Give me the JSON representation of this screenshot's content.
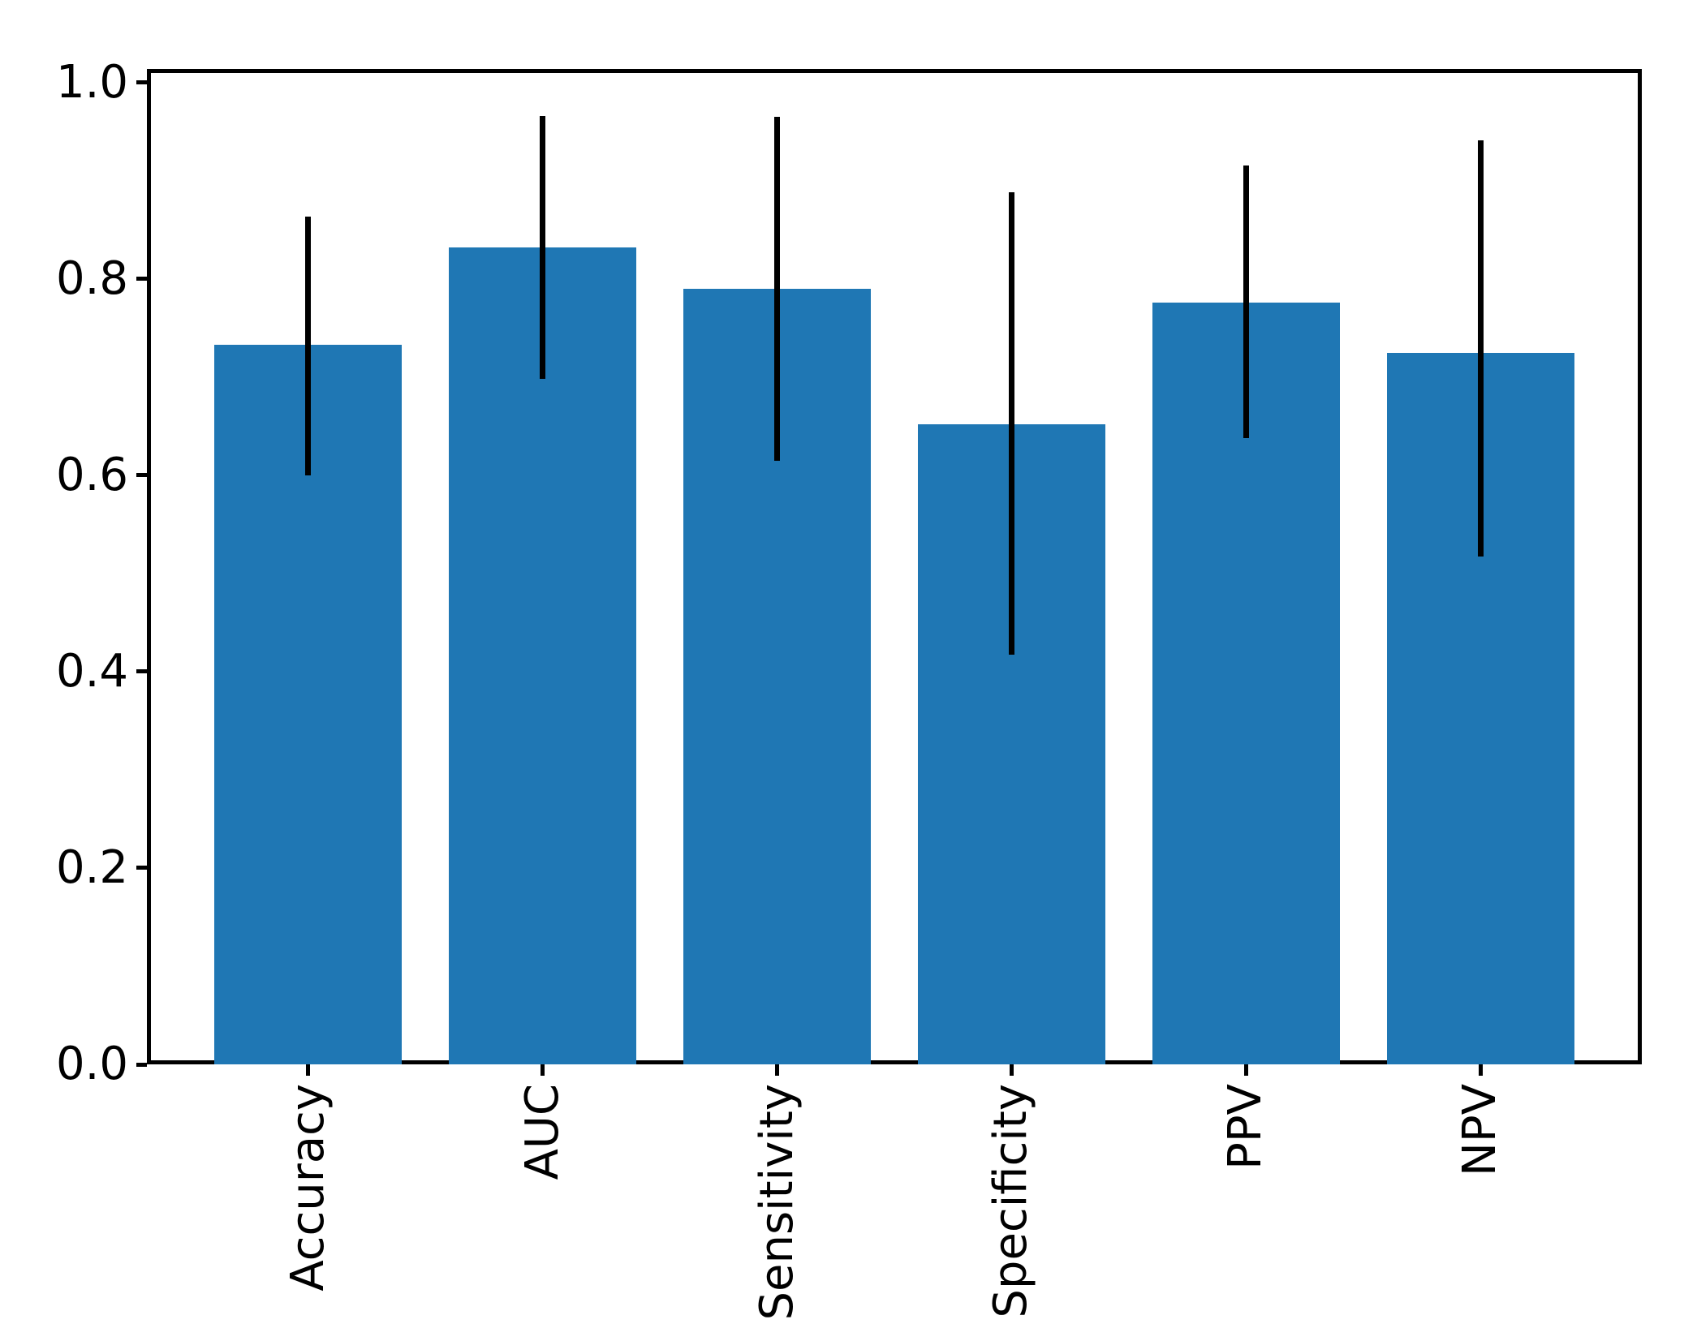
{
  "chart_data": {
    "type": "bar",
    "title": "",
    "xlabel": "",
    "ylabel": "",
    "categories": [
      "Accuracy",
      "AUC",
      "Sensitivity",
      "Specificity",
      "PPV",
      "NPV"
    ],
    "values": [
      0.733,
      0.832,
      0.79,
      0.652,
      0.776,
      0.725
    ],
    "error_low": [
      0.6,
      0.698,
      0.615,
      0.417,
      0.638,
      0.517
    ],
    "error_high": [
      0.864,
      0.966,
      0.965,
      0.888,
      0.916,
      0.941
    ],
    "ytick_labels": [
      "0.0",
      "0.2",
      "0.4",
      "0.6",
      "0.8",
      "1.0"
    ],
    "ytick_values": [
      0.0,
      0.2,
      0.4,
      0.6,
      0.8,
      1.0
    ],
    "ylim": [
      0,
      1.014
    ],
    "xlim": [
      -0.688,
      5.688
    ],
    "bar_width_units": 0.8,
    "bar_color": "#1f77b4",
    "error_color": "#000000",
    "grid": false,
    "legend": null
  }
}
